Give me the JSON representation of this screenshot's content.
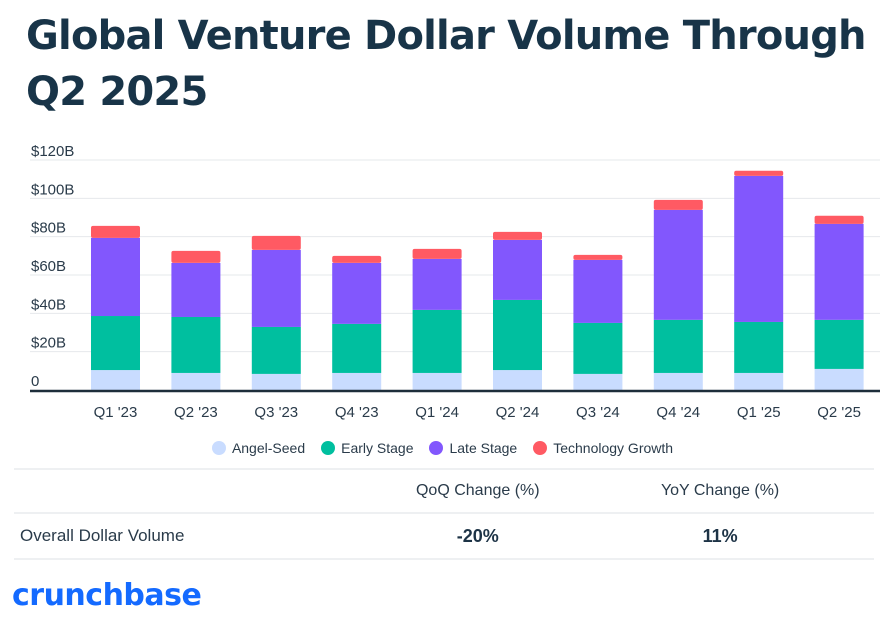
{
  "chart_data": {
    "type": "bar",
    "stacked": true,
    "title": "Global Venture Dollar Volume Through Q2 2025",
    "xlabel": "",
    "ylabel": "",
    "ylim": [
      0,
      120
    ],
    "yticks": [
      0,
      20,
      40,
      60,
      80,
      100,
      120
    ],
    "ytick_labels": [
      "0",
      "$20B",
      "$40B",
      "$60B",
      "$80B",
      "$100B",
      "$120B"
    ],
    "grid": true,
    "legend_position": "bottom",
    "categories": [
      "Q1 '23",
      "Q2 '23",
      "Q3 '23",
      "Q4 '23",
      "Q1 '24",
      "Q2 '24",
      "Q3 '24",
      "Q4 '24",
      "Q1 '25",
      "Q2 '25"
    ],
    "series": [
      {
        "name": "Angel-Seed",
        "color": "#c9dcff",
        "values": [
          10.4,
          8.9,
          8.4,
          8.9,
          8.9,
          10.4,
          8.4,
          8.9,
          8.9,
          11.0
        ]
      },
      {
        "name": "Early Stage",
        "color": "#00bf9f",
        "values": [
          28.2,
          29.2,
          24.5,
          25.6,
          32.9,
          36.6,
          26.6,
          27.7,
          26.6,
          25.6
        ]
      },
      {
        "name": "Late Stage",
        "color": "#8257fd",
        "values": [
          40.8,
          28.2,
          40.2,
          31.8,
          26.6,
          31.3,
          32.9,
          57.4,
          76.2,
          50.1
        ]
      },
      {
        "name": "Technology Growth",
        "color": "#ff5a63",
        "values": [
          6.2,
          6.3,
          7.3,
          3.7,
          5.2,
          4.2,
          2.6,
          5.2,
          2.7,
          4.2
        ]
      }
    ]
  },
  "title": "Global Venture Dollar Volume Through Q2 2025",
  "table": {
    "headers": [
      "",
      "QoQ Change (%)",
      "YoY Change (%)"
    ],
    "rows": [
      {
        "label": "Overall Dollar Volume",
        "qoq": "-20%",
        "yoy": "11%"
      }
    ]
  },
  "brand": {
    "logo_text": "crunchbase",
    "color": "#146aff"
  }
}
